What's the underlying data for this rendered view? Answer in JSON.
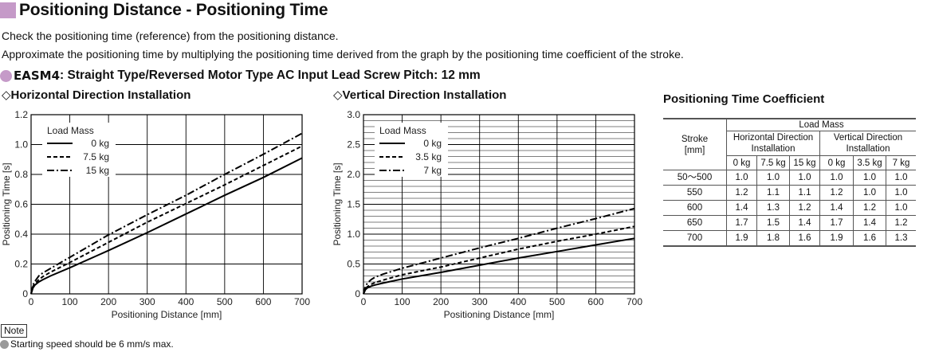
{
  "header": {
    "title": "Positioning Distance - Positioning Time",
    "desc1": "Check the positioning time (reference) from the positioning distance.",
    "desc2": "Approximate the positioning time by multiplying the positioning time derived from the graph by the positioning time coefficient of the stroke.",
    "model": "EASM4",
    "model_desc": ": Straight Type/Reversed Motor Type AC Input Lead Screw Pitch: 12 mm",
    "accent_color": "#c59ac8"
  },
  "chart_data": [
    {
      "type": "line",
      "heading_symbol": "◇",
      "heading": "Horizontal Direction Installation",
      "xlabel": "Positioning Distance [mm]",
      "ylabel": "Positioning Time [s]",
      "xlim": [
        0,
        700
      ],
      "ylim": [
        0,
        1.2
      ],
      "xticks": [
        "0",
        "100",
        "200",
        "300",
        "400",
        "500",
        "600",
        "700"
      ],
      "yticks": [
        "0",
        "0.2",
        "0.4",
        "0.6",
        "0.8",
        "1.0",
        "1.2"
      ],
      "grid": "on",
      "legend_title": "Load Mass",
      "legend_position": "top-left",
      "series": [
        {
          "name": "0 kg",
          "style": "solid",
          "x": [
            0,
            5,
            10,
            20,
            30,
            50,
            100,
            200,
            300,
            400,
            500,
            600,
            700
          ],
          "y": [
            0,
            0.04,
            0.06,
            0.08,
            0.095,
            0.12,
            0.175,
            0.29,
            0.41,
            0.535,
            0.66,
            0.78,
            0.91
          ]
        },
        {
          "name": "7.5 kg",
          "style": "dash",
          "x": [
            0,
            5,
            10,
            20,
            30,
            50,
            100,
            200,
            300,
            400,
            500,
            600,
            700
          ],
          "y": [
            0,
            0.05,
            0.07,
            0.095,
            0.115,
            0.145,
            0.21,
            0.345,
            0.48,
            0.605,
            0.73,
            0.86,
            0.99
          ]
        },
        {
          "name": "15 kg",
          "style": "dashdot",
          "x": [
            0,
            5,
            10,
            20,
            30,
            50,
            100,
            200,
            300,
            400,
            500,
            600,
            700
          ],
          "y": [
            0,
            0.06,
            0.085,
            0.12,
            0.14,
            0.17,
            0.245,
            0.395,
            0.53,
            0.66,
            0.8,
            0.935,
            1.075
          ]
        }
      ]
    },
    {
      "type": "line",
      "heading_symbol": "◇",
      "heading": "Vertical Direction Installation",
      "xlabel": "Positioning Distance [mm]",
      "ylabel": "Positioning Time [s]",
      "xlim": [
        0,
        700
      ],
      "ylim": [
        0,
        3.0
      ],
      "xticks": [
        "0",
        "100",
        "200",
        "300",
        "400",
        "500",
        "600",
        "700"
      ],
      "yticks": [
        "0",
        "0.5",
        "1.0",
        "1.5",
        "2.0",
        "2.5",
        "3.0"
      ],
      "grid": "on",
      "legend_title": "Load Mass",
      "legend_position": "top-left",
      "series": [
        {
          "name": "0 kg",
          "style": "solid",
          "x": [
            0,
            5,
            10,
            20,
            30,
            50,
            100,
            200,
            300,
            400,
            500,
            600,
            700
          ],
          "y": [
            0,
            0.07,
            0.1,
            0.13,
            0.15,
            0.18,
            0.25,
            0.36,
            0.48,
            0.6,
            0.71,
            0.82,
            0.93
          ]
        },
        {
          "name": "3.5 kg",
          "style": "dash",
          "x": [
            0,
            5,
            10,
            20,
            30,
            50,
            100,
            200,
            300,
            400,
            500,
            600,
            700
          ],
          "y": [
            0,
            0.08,
            0.12,
            0.16,
            0.19,
            0.23,
            0.32,
            0.45,
            0.6,
            0.75,
            0.88,
            1.0,
            1.13
          ]
        },
        {
          "name": "7 kg",
          "style": "dashdot",
          "x": [
            0,
            5,
            10,
            20,
            30,
            50,
            100,
            200,
            300,
            400,
            500,
            600,
            700
          ],
          "y": [
            0,
            0.12,
            0.18,
            0.24,
            0.28,
            0.33,
            0.43,
            0.6,
            0.77,
            0.93,
            1.1,
            1.26,
            1.43
          ]
        }
      ]
    }
  ],
  "coef": {
    "title": "Positioning Time Coefficient",
    "stroke_header": "Stroke",
    "stroke_unit": "[mm]",
    "load_mass": "Load Mass",
    "horizontal": "Horizontal Direction Installation",
    "vertical": "Vertical Direction Installation",
    "h_cols": [
      "0 kg",
      "7.5 kg",
      "15 kg"
    ],
    "v_cols": [
      "0 kg",
      "3.5 kg",
      "7 kg"
    ],
    "rows": [
      {
        "stroke": "50～500",
        "values": [
          "1.0",
          "1.0",
          "1.0",
          "1.0",
          "1.0",
          "1.0"
        ]
      },
      {
        "stroke": "550",
        "values": [
          "1.2",
          "1.1",
          "1.1",
          "1.2",
          "1.0",
          "1.0"
        ]
      },
      {
        "stroke": "600",
        "values": [
          "1.4",
          "1.3",
          "1.2",
          "1.4",
          "1.2",
          "1.0"
        ]
      },
      {
        "stroke": "650",
        "values": [
          "1.7",
          "1.5",
          "1.4",
          "1.7",
          "1.4",
          "1.2"
        ]
      },
      {
        "stroke": "700",
        "values": [
          "1.9",
          "1.8",
          "1.6",
          "1.9",
          "1.6",
          "1.3"
        ]
      }
    ]
  },
  "note": {
    "label": "Note",
    "text": "Starting speed should be 6 mm/s max."
  }
}
